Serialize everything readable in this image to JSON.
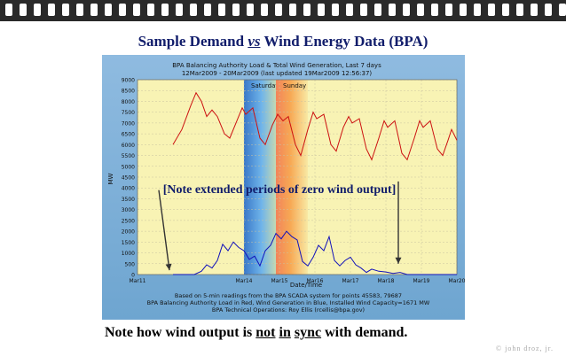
{
  "slide": {
    "title_pre": "Sample Demand",
    "title_vs": "vs",
    "title_post": "Wind Energy Data (BPA)",
    "bottom_note": {
      "part1": "Note how wind output is",
      "w_not": "not",
      "w_in": "in",
      "w_sync": "sync",
      "part2": "with demand."
    },
    "credit": "© john droz, jr."
  },
  "colors": {
    "ring_bar": "#2a2a2a",
    "title": "#111d6b",
    "figure_bg": "#7aaed6",
    "plot_bg": "#f8f3b4",
    "load_line": "#cc1111",
    "wind_line": "#1111bb",
    "annotation": "#111d6b"
  },
  "chart_data": {
    "type": "line",
    "title_lines": [
      "BPA Balancing Authority Load & Total Wind Generation, Last 7 days",
      "12Mar2009 - 20Mar2009 (last updated 19Mar2009 12:56:37)"
    ],
    "xlabel": "Date/Time",
    "ylabel": "MW",
    "ylim": [
      0,
      9000
    ],
    "yticks": [
      0,
      500,
      1000,
      1500,
      2000,
      2500,
      3000,
      3500,
      4000,
      4500,
      5000,
      5500,
      6000,
      6500,
      7000,
      7500,
      8000,
      8500,
      9000
    ],
    "xlim": [
      11,
      20
    ],
    "xticks": [
      {
        "x": 11,
        "label": "Mar11"
      },
      {
        "x": 14,
        "label": "Mar14"
      },
      {
        "x": 15,
        "label": "Mar15"
      },
      {
        "x": 16,
        "label": "Mar16"
      },
      {
        "x": 17,
        "label": "Mar17"
      },
      {
        "x": 18,
        "label": "Mar18"
      },
      {
        "x": 19,
        "label": "Mar19"
      },
      {
        "x": 20,
        "label": "Mar20"
      }
    ],
    "weekend_bands": [
      {
        "label": "Saturday",
        "from": 14,
        "to": 14.9
      },
      {
        "label": "Sunday",
        "from": 14.9,
        "to": 15.8
      }
    ],
    "annotation": "[Note extended periods of zero wind output]",
    "footnotes": [
      "Based on 5-min readings from the BPA SCADA system for points 45583, 79687",
      "BPA Balancing Authority Load in Red, Wind Generation in Blue, Installed Wind Capacity=1671 MW",
      "BPA Technical Operations: Roy Ellis (rcellis@bpa.gov)"
    ],
    "series": [
      {
        "color": "red",
        "points": [
          [
            12.0,
            6000
          ],
          [
            12.25,
            6700
          ],
          [
            12.5,
            7800
          ],
          [
            12.65,
            8400
          ],
          [
            12.8,
            8000
          ],
          [
            12.95,
            7300
          ],
          [
            13.1,
            7600
          ],
          [
            13.25,
            7300
          ],
          [
            13.45,
            6500
          ],
          [
            13.6,
            6300
          ],
          [
            13.8,
            7100
          ],
          [
            13.95,
            7700
          ],
          [
            14.05,
            7400
          ],
          [
            14.25,
            7700
          ],
          [
            14.45,
            6300
          ],
          [
            14.6,
            6000
          ],
          [
            14.8,
            6900
          ],
          [
            14.95,
            7400
          ],
          [
            15.1,
            7100
          ],
          [
            15.25,
            7300
          ],
          [
            15.45,
            6000
          ],
          [
            15.6,
            5500
          ],
          [
            15.8,
            6700
          ],
          [
            15.95,
            7500
          ],
          [
            16.05,
            7200
          ],
          [
            16.25,
            7400
          ],
          [
            16.45,
            6000
          ],
          [
            16.6,
            5700
          ],
          [
            16.8,
            6800
          ],
          [
            16.95,
            7300
          ],
          [
            17.05,
            7000
          ],
          [
            17.25,
            7200
          ],
          [
            17.45,
            5800
          ],
          [
            17.6,
            5300
          ],
          [
            17.8,
            6300
          ],
          [
            17.95,
            7100
          ],
          [
            18.05,
            6800
          ],
          [
            18.25,
            7100
          ],
          [
            18.45,
            5600
          ],
          [
            18.6,
            5300
          ],
          [
            18.8,
            6300
          ],
          [
            18.95,
            7100
          ],
          [
            19.05,
            6800
          ],
          [
            19.25,
            7100
          ],
          [
            19.45,
            5800
          ],
          [
            19.6,
            5500
          ],
          [
            19.75,
            6200
          ],
          [
            19.85,
            6700
          ],
          [
            20.0,
            6200
          ]
        ]
      },
      {
        "color": "blue",
        "points": [
          [
            12.0,
            0
          ],
          [
            12.6,
            0
          ],
          [
            12.8,
            150
          ],
          [
            12.95,
            450
          ],
          [
            13.1,
            300
          ],
          [
            13.25,
            650
          ],
          [
            13.4,
            1400
          ],
          [
            13.55,
            1100
          ],
          [
            13.7,
            1500
          ],
          [
            13.85,
            1250
          ],
          [
            14.0,
            1100
          ],
          [
            14.15,
            700
          ],
          [
            14.3,
            850
          ],
          [
            14.45,
            400
          ],
          [
            14.6,
            1100
          ],
          [
            14.75,
            1350
          ],
          [
            14.9,
            1900
          ],
          [
            15.05,
            1650
          ],
          [
            15.2,
            2000
          ],
          [
            15.35,
            1750
          ],
          [
            15.5,
            1600
          ],
          [
            15.65,
            600
          ],
          [
            15.8,
            400
          ],
          [
            15.95,
            800
          ],
          [
            16.1,
            1350
          ],
          [
            16.25,
            1100
          ],
          [
            16.4,
            1750
          ],
          [
            16.55,
            650
          ],
          [
            16.7,
            400
          ],
          [
            16.85,
            650
          ],
          [
            17.0,
            800
          ],
          [
            17.15,
            450
          ],
          [
            17.3,
            300
          ],
          [
            17.45,
            100
          ],
          [
            17.6,
            250
          ],
          [
            17.8,
            150
          ],
          [
            18.0,
            120
          ],
          [
            18.2,
            50
          ],
          [
            18.4,
            100
          ],
          [
            18.6,
            0
          ],
          [
            20.0,
            0
          ]
        ]
      }
    ],
    "arrows": [
      {
        "from": [
          11.6,
          3900
        ],
        "to": [
          11.9,
          200
        ]
      },
      {
        "from": [
          18.35,
          4300
        ],
        "to": [
          18.35,
          500
        ]
      }
    ]
  }
}
